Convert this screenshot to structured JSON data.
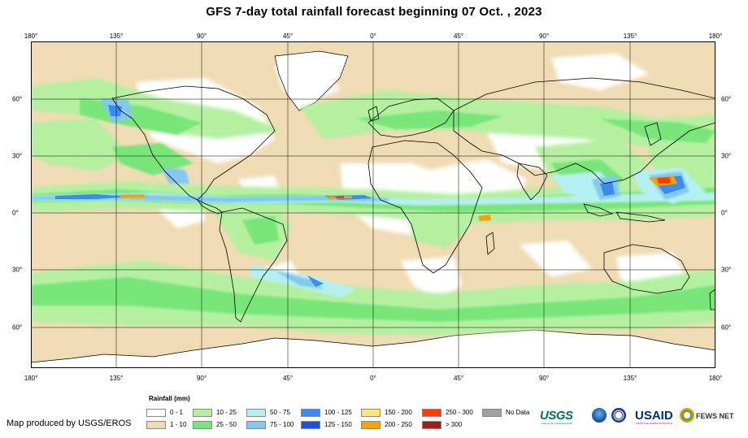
{
  "title": "GFS 7-day total rainfall forecast beginning 07 Oct. , 2023",
  "lon_ticks": [
    "180°",
    "135°",
    "90°",
    "45°",
    "0°",
    "45°",
    "90°",
    "135°",
    "180°"
  ],
  "lat_ticks": [
    "60°",
    "30°",
    "0°",
    "30°",
    "60°"
  ],
  "legend": {
    "title": "Rainfall (mm)",
    "items": [
      {
        "label": "0 - 1",
        "color": "#ffffff"
      },
      {
        "label": "1 - 10",
        "color": "#f0dcb4"
      },
      {
        "label": "10 - 25",
        "color": "#b4f0a0"
      },
      {
        "label": "25 - 50",
        "color": "#78e678"
      },
      {
        "label": "50 - 75",
        "color": "#b4f0f0"
      },
      {
        "label": "75 - 100",
        "color": "#82c8f0"
      },
      {
        "label": "100 - 125",
        "color": "#3c8cf0"
      },
      {
        "label": "125 - 150",
        "color": "#1e50dc"
      },
      {
        "label": "150 - 200",
        "color": "#ffe678"
      },
      {
        "label": "200 - 250",
        "color": "#ffa000"
      },
      {
        "label": "250 - 300",
        "color": "#ff3c00"
      },
      {
        "label": "> 300",
        "color": "#a01e1e"
      },
      {
        "label": "No Data",
        "color": "#a0a0a0"
      }
    ]
  },
  "credit": "Map produced by USGS/EROS",
  "logos": {
    "usgs": "USGS",
    "usgs_tagline": "science for a changing world",
    "usaid": "USAID",
    "usaid_tagline": "FROM THE AMERICAN PEOPLE",
    "fews": "FEWS NET"
  }
}
